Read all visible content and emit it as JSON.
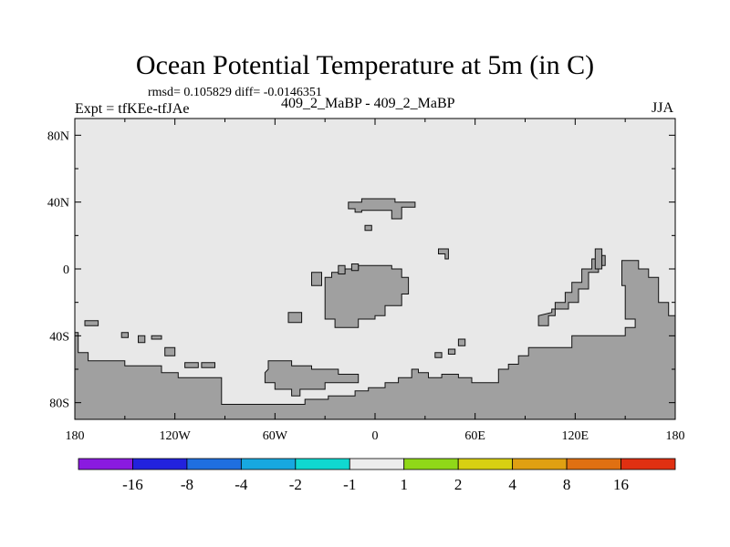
{
  "chart_data": {
    "type": "heatmap",
    "title": "Ocean Potential Temperature at 5m (in C)",
    "stats": "rmsd= 0.105829 diff= -0.0146351",
    "experiment": "Expt = tfKEe-tfJAe",
    "case": "409_2_MaBP - 409_2_MaBP",
    "season": "JJA",
    "field_value_range": "-1 to 1",
    "x_range": [
      -180,
      180
    ],
    "y_range": [
      -90,
      90
    ],
    "x_ticks": [
      {
        "value": -180,
        "label": "180"
      },
      {
        "value": -120,
        "label": "120W"
      },
      {
        "value": -60,
        "label": "60W"
      },
      {
        "value": 0,
        "label": "0"
      },
      {
        "value": 60,
        "label": "60E"
      },
      {
        "value": 120,
        "label": "120E"
      },
      {
        "value": 180,
        "label": "180"
      }
    ],
    "y_ticks": [
      {
        "value": 80,
        "label": "80N"
      },
      {
        "value": 40,
        "label": "40N"
      },
      {
        "value": 0,
        "label": "0"
      },
      {
        "value": -40,
        "label": "40S"
      },
      {
        "value": -80,
        "label": "80S"
      }
    ],
    "colorbar": {
      "colors": [
        "#8a1ae0",
        "#2222dd",
        "#1f6fe0",
        "#17a8e0",
        "#10d8d0",
        "#ececec",
        "#90d818",
        "#d8d012",
        "#e0a012",
        "#e07012",
        "#e03012"
      ],
      "labels": [
        "-16",
        "-8",
        "-4",
        "-2",
        "-1",
        "1",
        "2",
        "4",
        "8",
        "16"
      ]
    },
    "colors": {
      "land": "#a0a0a0",
      "ocean_near_zero": "#e8e8e8"
    },
    "land_regions": [
      {
        "name": "south-america-antarctic-band",
        "points": [
          [
            -180,
            -38
          ],
          [
            -178,
            -38
          ],
          [
            -178,
            -50
          ],
          [
            -172,
            -50
          ],
          [
            -172,
            -55
          ],
          [
            -150,
            -55
          ],
          [
            -150,
            -58
          ],
          [
            -128,
            -58
          ],
          [
            -128,
            -62
          ],
          [
            -118,
            -62
          ],
          [
            -118,
            -65
          ],
          [
            -92,
            -65
          ],
          [
            -92,
            -81
          ],
          [
            -42,
            -81
          ],
          [
            -42,
            -78
          ],
          [
            -28,
            -78
          ],
          [
            -28,
            -76
          ],
          [
            -12,
            -76
          ],
          [
            -12,
            -73
          ],
          [
            -4,
            -73
          ],
          [
            -4,
            -71
          ],
          [
            6,
            -71
          ],
          [
            6,
            -68
          ],
          [
            14,
            -68
          ],
          [
            14,
            -65
          ],
          [
            22,
            -65
          ],
          [
            22,
            -60
          ],
          [
            26,
            -60
          ],
          [
            26,
            -62
          ],
          [
            32,
            -62
          ],
          [
            32,
            -65
          ],
          [
            40,
            -65
          ],
          [
            40,
            -63
          ],
          [
            50,
            -63
          ],
          [
            50,
            -65
          ],
          [
            58,
            -65
          ],
          [
            58,
            -68
          ],
          [
            74,
            -68
          ],
          [
            74,
            -60
          ],
          [
            80,
            -60
          ],
          [
            80,
            -57
          ],
          [
            86,
            -57
          ],
          [
            86,
            -52
          ],
          [
            92,
            -52
          ],
          [
            92,
            -47
          ],
          [
            118,
            -47
          ],
          [
            118,
            -40
          ],
          [
            150,
            -40
          ],
          [
            150,
            -35
          ],
          [
            156,
            -35
          ],
          [
            156,
            -30
          ],
          [
            150,
            -30
          ],
          [
            150,
            -10
          ],
          [
            148,
            -10
          ],
          [
            148,
            5
          ],
          [
            158,
            5
          ],
          [
            158,
            0
          ],
          [
            164,
            0
          ],
          [
            164,
            -5
          ],
          [
            170,
            -5
          ],
          [
            170,
            -20
          ],
          [
            176,
            -20
          ],
          [
            176,
            -28
          ],
          [
            180,
            -28
          ],
          [
            180,
            -90
          ],
          [
            -180,
            -90
          ]
        ]
      },
      {
        "name": "ocean-island-atlantic-south",
        "points": [
          [
            -64,
            -60
          ],
          [
            -64,
            -55
          ],
          [
            -50,
            -55
          ],
          [
            -50,
            -58
          ],
          [
            -38,
            -58
          ],
          [
            -38,
            -60
          ],
          [
            -22,
            -60
          ],
          [
            -22,
            -63
          ],
          [
            -10,
            -63
          ],
          [
            -10,
            -68
          ],
          [
            -30,
            -68
          ],
          [
            -30,
            -72
          ],
          [
            -45,
            -72
          ],
          [
            -45,
            -76
          ],
          [
            -50,
            -76
          ],
          [
            -50,
            -72
          ],
          [
            -60,
            -72
          ],
          [
            -60,
            -68
          ],
          [
            -66,
            -68
          ],
          [
            -66,
            -62
          ]
        ]
      },
      {
        "name": "africa-like-mass",
        "points": [
          [
            -30,
            -30
          ],
          [
            -30,
            -5
          ],
          [
            -26,
            -5
          ],
          [
            -26,
            -2
          ],
          [
            -18,
            -2
          ],
          [
            -18,
            0
          ],
          [
            -10,
            0
          ],
          [
            -10,
            2
          ],
          [
            10,
            2
          ],
          [
            10,
            0
          ],
          [
            16,
            0
          ],
          [
            16,
            -5
          ],
          [
            20,
            -5
          ],
          [
            20,
            -15
          ],
          [
            16,
            -15
          ],
          [
            16,
            -22
          ],
          [
            6,
            -22
          ],
          [
            6,
            -28
          ],
          [
            0,
            -28
          ],
          [
            0,
            -30
          ],
          [
            -10,
            -30
          ],
          [
            -10,
            -35
          ],
          [
            -24,
            -35
          ],
          [
            -24,
            -30
          ]
        ]
      },
      {
        "name": "north-block",
        "points": [
          [
            -16,
            36
          ],
          [
            -16,
            40
          ],
          [
            -8,
            40
          ],
          [
            -8,
            42
          ],
          [
            12,
            42
          ],
          [
            12,
            40
          ],
          [
            24,
            40
          ],
          [
            24,
            37
          ],
          [
            16,
            37
          ],
          [
            16,
            30
          ],
          [
            10,
            30
          ],
          [
            10,
            35
          ],
          [
            -8,
            35
          ],
          [
            -8,
            34
          ],
          [
            -12,
            34
          ],
          [
            -12,
            36
          ]
        ]
      },
      {
        "name": "island-north-small",
        "points": [
          [
            -6,
            26
          ],
          [
            -6,
            23
          ],
          [
            -2,
            23
          ],
          [
            -2,
            26
          ]
        ]
      },
      {
        "name": "island-west-1",
        "points": [
          [
            -38,
            -10
          ],
          [
            -38,
            -2
          ],
          [
            -32,
            -2
          ],
          [
            -32,
            -10
          ]
        ]
      },
      {
        "name": "island-west-2",
        "points": [
          [
            -52,
            -26
          ],
          [
            -52,
            -32
          ],
          [
            -44,
            -32
          ],
          [
            -44,
            -26
          ]
        ]
      },
      {
        "name": "island-west-3",
        "points": [
          [
            -22,
            2
          ],
          [
            -22,
            -3
          ],
          [
            -18,
            -3
          ],
          [
            -18,
            2
          ]
        ]
      },
      {
        "name": "island-west-4",
        "points": [
          [
            -14,
            3
          ],
          [
            -14,
            -1
          ],
          [
            -10,
            -1
          ],
          [
            -10,
            3
          ]
        ]
      },
      {
        "name": "island-pacific-1",
        "points": [
          [
            -174,
            -31
          ],
          [
            -174,
            -34
          ],
          [
            -166,
            -34
          ],
          [
            -166,
            -31
          ]
        ]
      },
      {
        "name": "island-pacific-2",
        "points": [
          [
            -152,
            -38
          ],
          [
            -152,
            -41
          ],
          [
            -148,
            -41
          ],
          [
            -148,
            -38
          ]
        ]
      },
      {
        "name": "island-pacific-3",
        "points": [
          [
            -142,
            -40
          ],
          [
            -142,
            -44
          ],
          [
            -138,
            -44
          ],
          [
            -138,
            -40
          ]
        ]
      },
      {
        "name": "island-pacific-4",
        "points": [
          [
            -134,
            -40
          ],
          [
            -134,
            -42
          ],
          [
            -128,
            -42
          ],
          [
            -128,
            -40
          ]
        ]
      },
      {
        "name": "island-pacific-5",
        "points": [
          [
            -126,
            -47
          ],
          [
            -126,
            -52
          ],
          [
            -120,
            -52
          ],
          [
            -120,
            -47
          ]
        ]
      },
      {
        "name": "island-pacific-6",
        "points": [
          [
            -114,
            -56
          ],
          [
            -114,
            -59
          ],
          [
            -106,
            -59
          ],
          [
            -106,
            -56
          ]
        ]
      },
      {
        "name": "island-pacific-7",
        "points": [
          [
            -104,
            -56
          ],
          [
            -104,
            -59
          ],
          [
            -96,
            -59
          ],
          [
            -96,
            -56
          ]
        ]
      },
      {
        "name": "islands-central-1",
        "points": [
          [
            38,
            12
          ],
          [
            38,
            9
          ],
          [
            42,
            9
          ],
          [
            42,
            6
          ],
          [
            44,
            6
          ],
          [
            44,
            12
          ]
        ]
      },
      {
        "name": "islands-central-2",
        "points": [
          [
            50,
            -42
          ],
          [
            50,
            -46
          ],
          [
            54,
            -46
          ],
          [
            54,
            -42
          ]
        ]
      },
      {
        "name": "islands-central-3",
        "points": [
          [
            36,
            -50
          ],
          [
            36,
            -53
          ],
          [
            40,
            -53
          ],
          [
            40,
            -50
          ]
        ]
      },
      {
        "name": "islands-central-4",
        "points": [
          [
            44,
            -48
          ],
          [
            44,
            -51
          ],
          [
            48,
            -51
          ],
          [
            48,
            -48
          ]
        ]
      },
      {
        "name": "maritime-chain",
        "points": [
          [
            98,
            -28
          ],
          [
            98,
            -34
          ],
          [
            104,
            -34
          ],
          [
            104,
            -28
          ],
          [
            108,
            -28
          ],
          [
            108,
            -20
          ],
          [
            114,
            -20
          ],
          [
            114,
            -14
          ],
          [
            118,
            -14
          ],
          [
            118,
            -8
          ],
          [
            124,
            -8
          ],
          [
            124,
            0
          ],
          [
            130,
            0
          ],
          [
            130,
            6
          ],
          [
            134,
            6
          ],
          [
            134,
            -2
          ],
          [
            128,
            -2
          ],
          [
            128,
            -12
          ],
          [
            122,
            -12
          ],
          [
            122,
            -20
          ],
          [
            116,
            -20
          ],
          [
            116,
            -24
          ],
          [
            106,
            -24
          ],
          [
            106,
            -26
          ]
        ]
      },
      {
        "name": "small-east-1",
        "points": [
          [
            132,
            12
          ],
          [
            132,
            0
          ],
          [
            136,
            0
          ],
          [
            136,
            12
          ]
        ]
      },
      {
        "name": "small-east-2",
        "points": [
          [
            136,
            8
          ],
          [
            136,
            2
          ],
          [
            138,
            2
          ],
          [
            138,
            8
          ]
        ]
      }
    ]
  },
  "labels": {
    "title": "Ocean Potential Temperature at 5m (in C)",
    "stats": "rmsd= 0.105829 diff= -0.0146351",
    "experiment": "Expt = tfKEe-tfJAe",
    "case": "409_2_MaBP - 409_2_MaBP",
    "season": "JJA"
  }
}
